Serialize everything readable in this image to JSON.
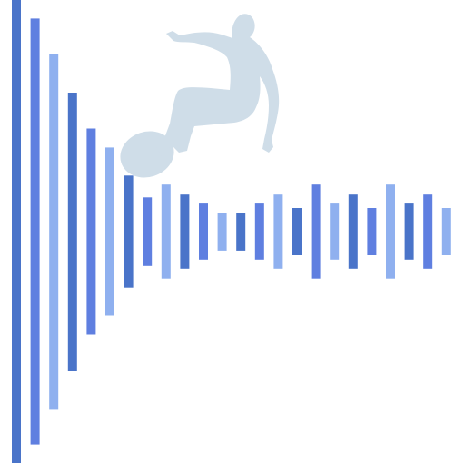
{
  "graphic": {
    "subject": "surfer-silhouette",
    "wave": "audio-waveform-bars",
    "colors": {
      "background": "#ffffff",
      "silhouette": "#cfdde8",
      "bar_dark": "#4a74c9",
      "bar_mid": "#5f7fe0",
      "bar_light": "#8fb0ef"
    },
    "bars": [
      {
        "level": 1.0,
        "tone": "dark"
      },
      {
        "level": 0.92,
        "tone": "mid"
      },
      {
        "level": 0.766,
        "tone": "light"
      },
      {
        "level": 0.6,
        "tone": "dark"
      },
      {
        "level": 0.445,
        "tone": "mid"
      },
      {
        "level": 0.363,
        "tone": "light"
      },
      {
        "level": 0.242,
        "tone": "dark"
      },
      {
        "level": 0.148,
        "tone": "mid"
      },
      {
        "level": 0.203,
        "tone": "light"
      },
      {
        "level": 0.16,
        "tone": "dark"
      },
      {
        "level": 0.121,
        "tone": "mid"
      },
      {
        "level": 0.082,
        "tone": "light"
      },
      {
        "level": 0.082,
        "tone": "dark"
      },
      {
        "level": 0.121,
        "tone": "mid"
      },
      {
        "level": 0.16,
        "tone": "light"
      },
      {
        "level": 0.102,
        "tone": "dark"
      },
      {
        "level": 0.203,
        "tone": "mid"
      },
      {
        "level": 0.121,
        "tone": "light"
      },
      {
        "level": 0.16,
        "tone": "dark"
      },
      {
        "level": 0.102,
        "tone": "mid"
      },
      {
        "level": 0.203,
        "tone": "light"
      },
      {
        "level": 0.121,
        "tone": "dark"
      },
      {
        "level": 0.16,
        "tone": "mid"
      },
      {
        "level": 0.102,
        "tone": "light"
      }
    ]
  }
}
